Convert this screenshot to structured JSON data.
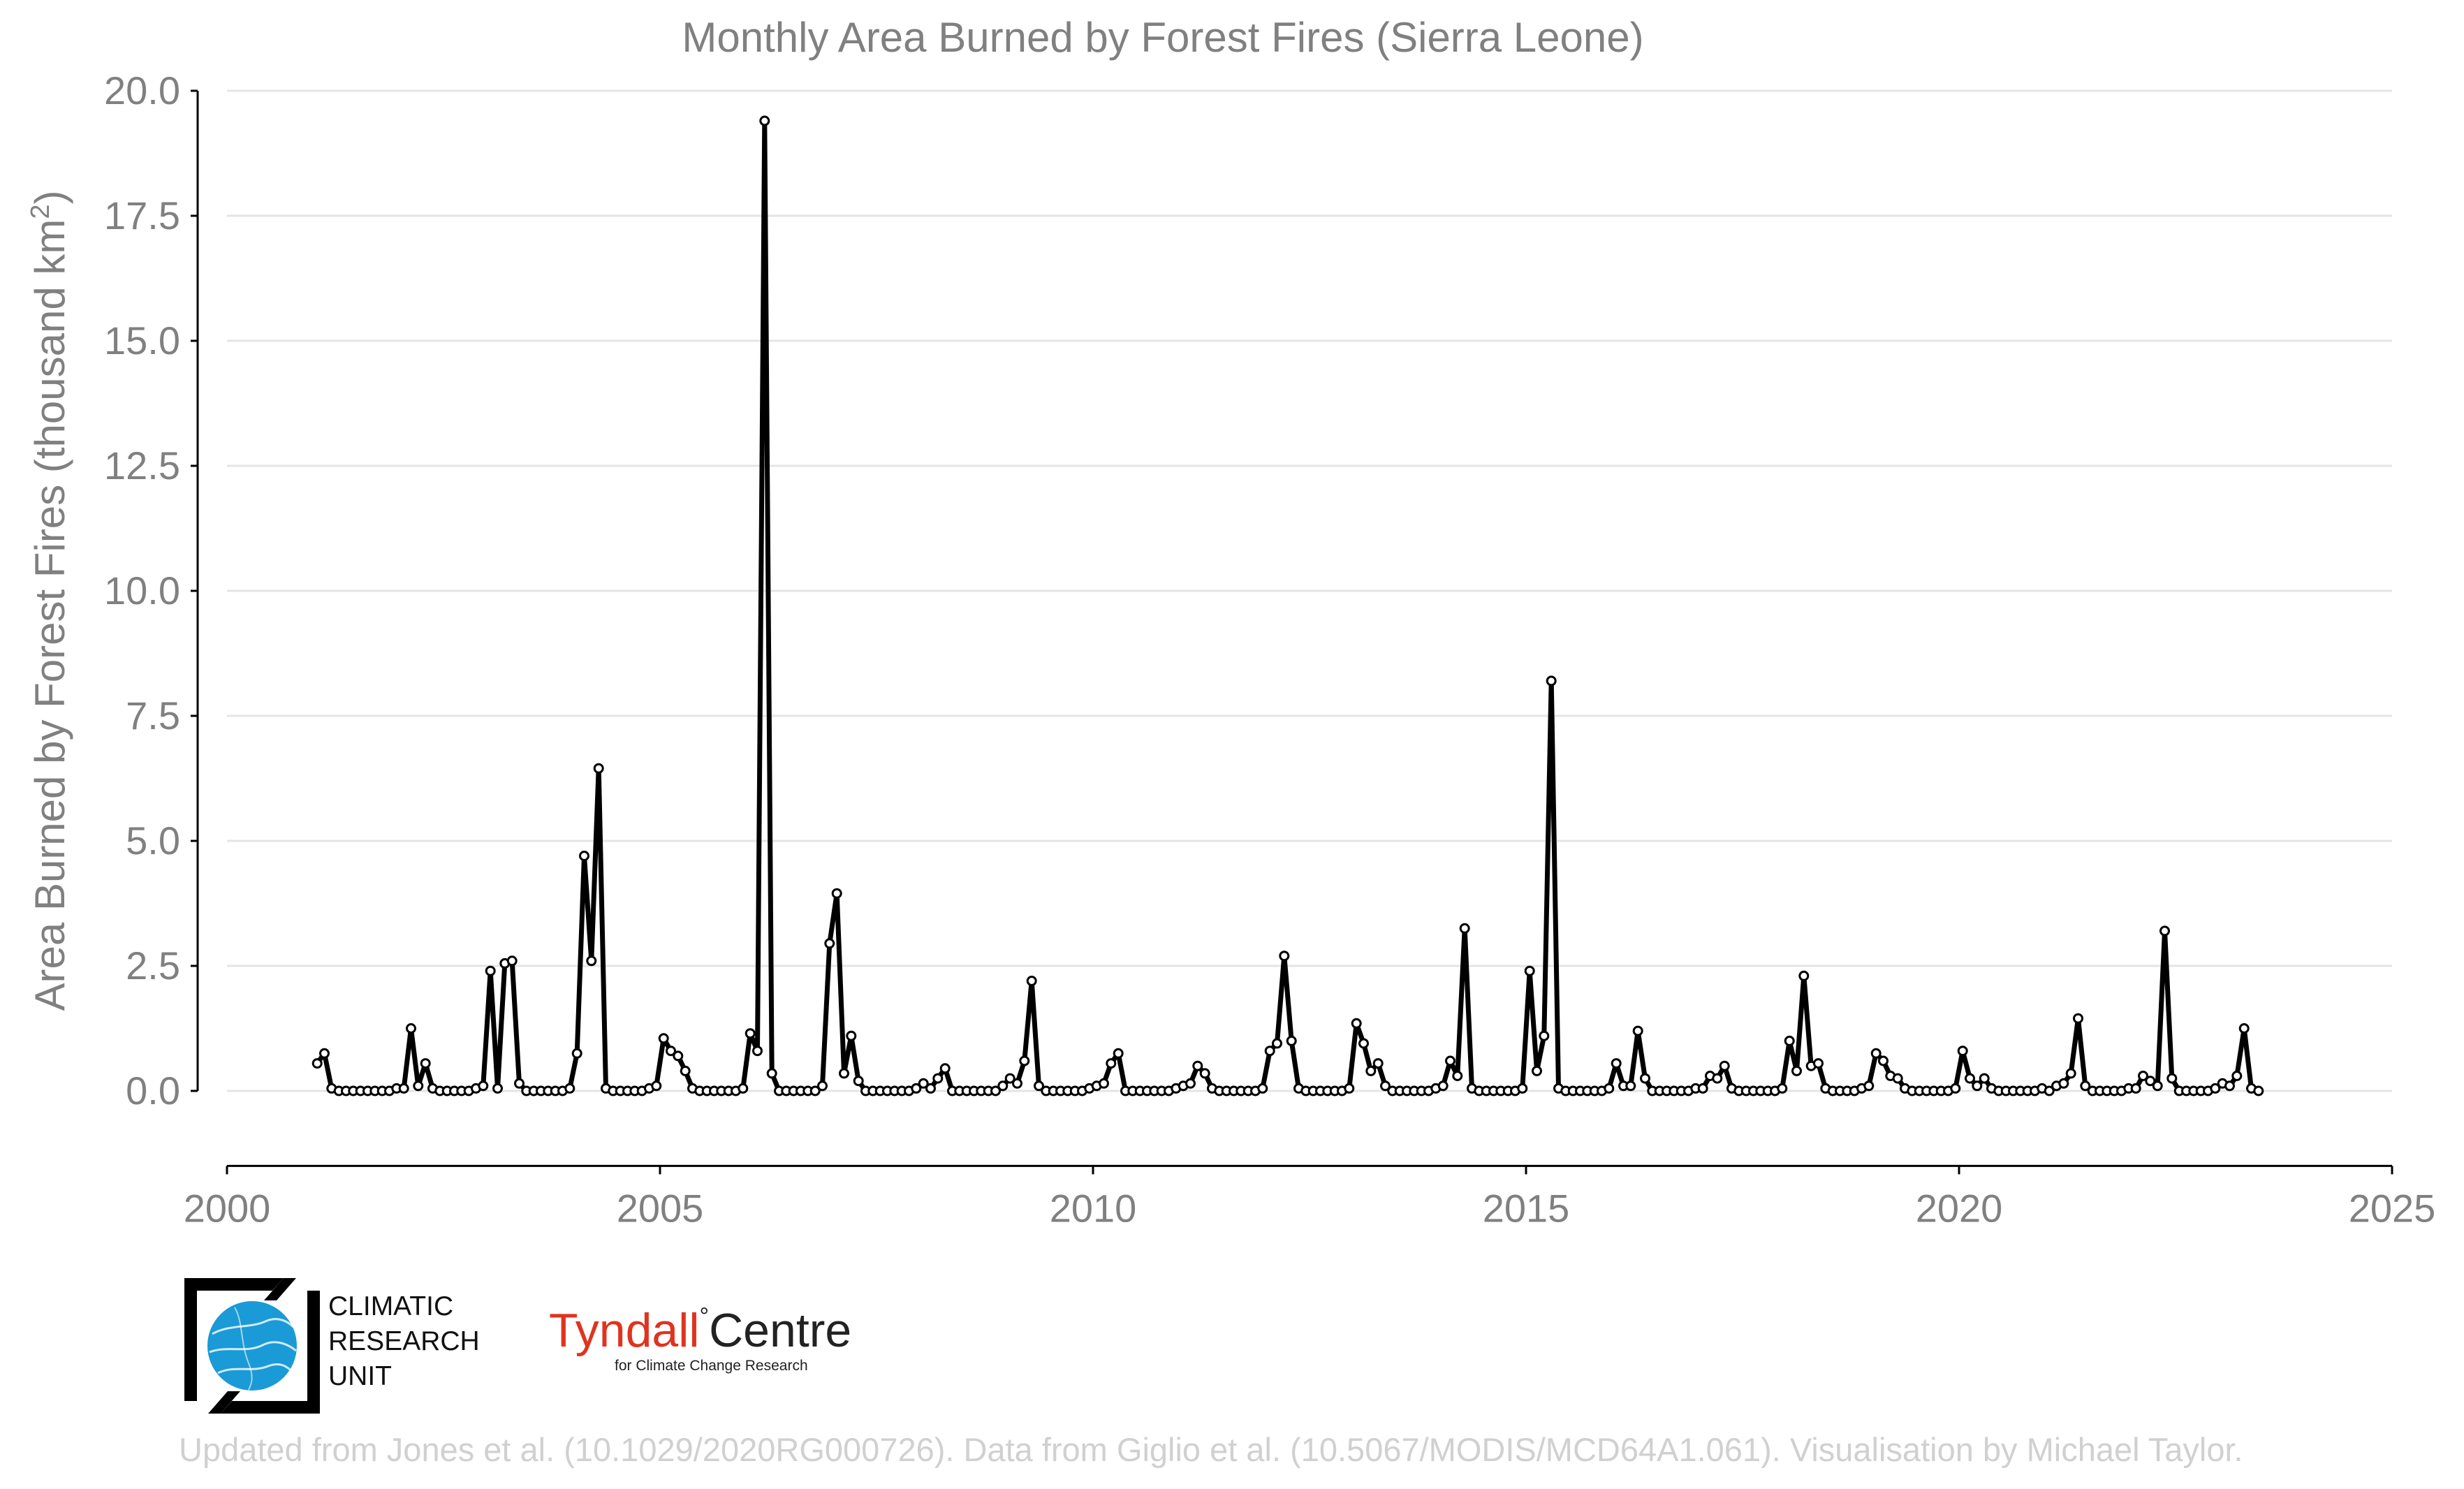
{
  "title": "Monthly Area Burned by Forest Fires (Sierra Leone)",
  "chart_data": {
    "type": "line",
    "title": "Monthly Area Burned by Forest Fires (Sierra Leone)",
    "xlabel": "",
    "ylabel": "Area Burned by Forest Fires (thousand km²)",
    "ylabel_main": "Area Burned by Forest Fires (thousand km",
    "ylabel_sup": "2",
    "ylabel_end": ")",
    "xlim": [
      2000,
      2025
    ],
    "ylim": [
      -1.5,
      20.0
    ],
    "xticks": [
      2000,
      2005,
      2010,
      2015,
      2020,
      2025
    ],
    "xtick_labels": [
      "2000",
      "2005",
      "2010",
      "2015",
      "2020",
      "2025"
    ],
    "yticks": [
      0.0,
      2.5,
      5.0,
      7.5,
      10.0,
      12.5,
      15.0,
      17.5,
      20.0
    ],
    "ytick_labels": [
      "0.0",
      "2.5",
      "5.0",
      "7.5",
      "10.0",
      "12.5",
      "15.0",
      "17.5",
      "20.0"
    ],
    "grid": true,
    "marker": "open-circle",
    "series": [
      {
        "name": "Monthly area burned",
        "start_year": 2001,
        "start_month": 1,
        "values": [
          0.55,
          0.75,
          0.05,
          0,
          0,
          0,
          0,
          0,
          0,
          0,
          0,
          0.05,
          0.05,
          1.25,
          0.1,
          0.55,
          0.05,
          0,
          0,
          0,
          0,
          0,
          0.05,
          0.1,
          2.4,
          0.05,
          2.55,
          2.6,
          0.15,
          0,
          0,
          0,
          0,
          0,
          0,
          0.05,
          0.75,
          4.7,
          2.6,
          6.45,
          0.05,
          0,
          0,
          0,
          0,
          0,
          0.05,
          0.1,
          1.05,
          0.8,
          0.7,
          0.4,
          0.05,
          0,
          0,
          0,
          0,
          0,
          0,
          0.05,
          1.15,
          0.8,
          19.4,
          0.35,
          0,
          0,
          0,
          0,
          0,
          0,
          0.1,
          2.95,
          3.95,
          0.35,
          1.1,
          0.2,
          0,
          0,
          0,
          0,
          0,
          0,
          0,
          0.05,
          0.15,
          0.05,
          0.25,
          0.45,
          0,
          0,
          0,
          0,
          0,
          0,
          0,
          0.1,
          0.25,
          0.15,
          0.6,
          2.2,
          0.1,
          0,
          0,
          0,
          0,
          0,
          0,
          0.05,
          0.1,
          0.15,
          0.55,
          0.75,
          0,
          0,
          0,
          0,
          0,
          0,
          0,
          0.05,
          0.1,
          0.15,
          0.5,
          0.35,
          0.05,
          0,
          0,
          0,
          0,
          0,
          0,
          0.05,
          0.8,
          0.95,
          2.7,
          1.0,
          0.05,
          0,
          0,
          0,
          0,
          0,
          0,
          0.05,
          1.35,
          0.95,
          0.4,
          0.55,
          0.1,
          0,
          0,
          0,
          0,
          0,
          0,
          0.05,
          0.1,
          0.6,
          0.3,
          3.25,
          0.05,
          0,
          0,
          0,
          0,
          0,
          0,
          0.05,
          2.4,
          0.4,
          1.1,
          8.2,
          0.05,
          0,
          0,
          0,
          0,
          0,
          0,
          0.05,
          0.55,
          0.1,
          0.1,
          1.2,
          0.25,
          0,
          0,
          0,
          0,
          0,
          0,
          0.05,
          0.05,
          0.3,
          0.25,
          0.5,
          0.05,
          0,
          0,
          0,
          0,
          0,
          0,
          0.05,
          1.0,
          0.4,
          2.3,
          0.5,
          0.55,
          0.05,
          0,
          0,
          0,
          0,
          0.05,
          0.1,
          0.75,
          0.6,
          0.3,
          0.25,
          0.05,
          0,
          0,
          0,
          0,
          0,
          0,
          0.05,
          0.8,
          0.25,
          0.1,
          0.25,
          0.05,
          0,
          0,
          0,
          0,
          0,
          0,
          0.05,
          0,
          0.1,
          0.15,
          0.35,
          1.45,
          0.1,
          0,
          0,
          0,
          0,
          0,
          0.05,
          0.05,
          0.3,
          0.2,
          0.1,
          3.2,
          0.25,
          0,
          0,
          0,
          0,
          0,
          0.05,
          0.15,
          0.1,
          0.3,
          1.25,
          0.05,
          0
        ]
      }
    ]
  },
  "logos": {
    "cru_lines": [
      "CLIMATIC",
      "RESEARCH",
      "UNIT"
    ],
    "tyndall_main_red": "Tyndall",
    "tyndall_degree": "°",
    "tyndall_main_dark": "Centre",
    "tyndall_sub": "for Climate Change Research"
  },
  "credit": "Updated from Jones et al. (10.1029/2020RG000726). Data from Giglio et al. (10.5067/MODIS/MCD64A1.061). Visualisation by Michael Taylor.",
  "colors": {
    "line": "#000000",
    "marker_fill": "#ffffff",
    "grid": "#e4e4e4",
    "text": "#808080",
    "credit": "#d0d0d0",
    "cru_blue": "#1a9ad6",
    "tyndall_red": "#e0331f"
  }
}
